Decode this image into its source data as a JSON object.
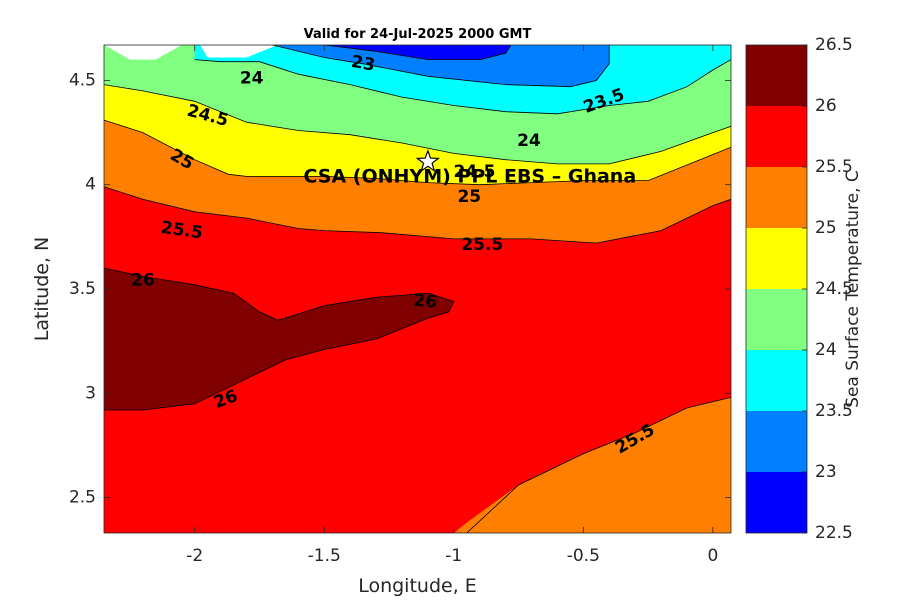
{
  "chart_data": {
    "type": "filled-contour",
    "title": "Valid for 24-Jul-2025 2000 GMT",
    "xlabel": "Longitude, E",
    "ylabel": "Latitude, N",
    "xlim": [
      -2.35,
      0.07
    ],
    "ylim": [
      2.33,
      4.67
    ],
    "xticks": [
      -2,
      -1.5,
      -1,
      -0.5,
      0
    ],
    "xtick_labels": [
      "-2",
      "-1.5",
      "-1",
      "-0.5",
      "0"
    ],
    "yticks": [
      2.5,
      3,
      3.5,
      4,
      4.5
    ],
    "ytick_labels": [
      "2.5",
      "3",
      "3.5",
      "4",
      "4.5"
    ],
    "colorbar": {
      "label": "Sea Surface Temperature, C",
      "levels": [
        22.5,
        23,
        23.5,
        24,
        24.5,
        25,
        25.5,
        26,
        26.5
      ],
      "tick_labels": [
        "22.5",
        "23",
        "23.5",
        "24",
        "24.5",
        "25",
        "25.5",
        "26",
        "26.5"
      ],
      "colors": [
        "#0000ff",
        "#0080ff",
        "#00ffff",
        "#80ff80",
        "#ffff00",
        "#ff8000",
        "#ff0000",
        "#800000"
      ]
    },
    "regions": [
      {
        "level": 25.5,
        "polygon": [
          [
            -2.35,
            2.33
          ],
          [
            0.07,
            2.33
          ],
          [
            0.07,
            4.67
          ],
          [
            -2.35,
            4.67
          ]
        ]
      },
      {
        "level": 25,
        "polygon": [
          [
            -1,
            2.33
          ],
          [
            0.07,
            2.33
          ],
          [
            0.07,
            2.98
          ],
          [
            -0.1,
            2.93
          ],
          [
            -0.3,
            2.81
          ],
          [
            -0.5,
            2.71
          ],
          [
            -0.75,
            2.56
          ],
          [
            -0.95,
            2.38
          ]
        ]
      },
      {
        "level": 25,
        "polygon": [
          [
            -2.35,
            3.99
          ],
          [
            -2.2,
            3.93
          ],
          [
            -2,
            3.87
          ],
          [
            -1.8,
            3.84
          ],
          [
            -1.6,
            3.79
          ],
          [
            -1.5,
            3.78
          ],
          [
            -1.28,
            3.77
          ],
          [
            -1,
            3.74
          ],
          [
            -0.7,
            3.74
          ],
          [
            -0.45,
            3.72
          ],
          [
            -0.2,
            3.78
          ],
          [
            0,
            3.9
          ],
          [
            0.07,
            3.93
          ],
          [
            0.07,
            4.67
          ],
          [
            -2.35,
            4.67
          ]
        ]
      },
      {
        "level": 24.5,
        "polygon": [
          [
            -2.35,
            4.31
          ],
          [
            -2.2,
            4.25
          ],
          [
            -2,
            4.12
          ],
          [
            -1.87,
            4.05
          ],
          [
            -1.8,
            4.04
          ],
          [
            -1.5,
            4.04
          ],
          [
            -1.3,
            4.03
          ],
          [
            -1.1,
            4.01
          ],
          [
            -0.9,
            4.0
          ],
          [
            -0.7,
            4.01
          ],
          [
            -0.5,
            4.02
          ],
          [
            -0.25,
            4.02
          ],
          [
            -0.05,
            4.12
          ],
          [
            0.07,
            4.18
          ],
          [
            0.07,
            4.67
          ],
          [
            -2.35,
            4.67
          ]
        ]
      },
      {
        "level": 24,
        "polygon": [
          [
            -2.35,
            4.48
          ],
          [
            -2.2,
            4.45
          ],
          [
            -2,
            4.4
          ],
          [
            -1.8,
            4.3
          ],
          [
            -1.6,
            4.26
          ],
          [
            -1.4,
            4.24
          ],
          [
            -1.2,
            4.2
          ],
          [
            -1,
            4.15
          ],
          [
            -0.8,
            4.12
          ],
          [
            -0.6,
            4.1
          ],
          [
            -0.4,
            4.1
          ],
          [
            -0.2,
            4.16
          ],
          [
            0,
            4.25
          ],
          [
            0.07,
            4.28
          ],
          [
            0.07,
            4.67
          ],
          [
            -2.35,
            4.67
          ]
        ]
      },
      {
        "level": 23.5,
        "polygon": [
          [
            -2,
            4.6
          ],
          [
            -1.9,
            4.59
          ],
          [
            -1.75,
            4.59
          ],
          [
            -1.6,
            4.53
          ],
          [
            -1.4,
            4.48
          ],
          [
            -1.2,
            4.42
          ],
          [
            -1,
            4.38
          ],
          [
            -0.8,
            4.35
          ],
          [
            -0.6,
            4.34
          ],
          [
            -0.4,
            4.38
          ],
          [
            -0.25,
            4.4
          ],
          [
            -0.1,
            4.47
          ],
          [
            0,
            4.55
          ],
          [
            0.07,
            4.6
          ],
          [
            0.07,
            4.67
          ],
          [
            -2,
            4.67
          ]
        ]
      },
      {
        "level": 23,
        "polygon": [
          [
            -1.7,
            4.67
          ],
          [
            -1.5,
            4.61
          ],
          [
            -1.35,
            4.58
          ],
          [
            -1.1,
            4.52
          ],
          [
            -0.8,
            4.48
          ],
          [
            -0.55,
            4.47
          ],
          [
            -0.45,
            4.5
          ],
          [
            -0.4,
            4.58
          ],
          [
            -0.4,
            4.67
          ]
        ]
      },
      {
        "level": 22.5,
        "polygon": [
          [
            -1.5,
            4.67
          ],
          [
            -1.3,
            4.64
          ],
          [
            -1.1,
            4.6
          ],
          [
            -0.9,
            4.6
          ],
          [
            -0.8,
            4.63
          ],
          [
            -0.78,
            4.67
          ]
        ]
      },
      {
        "level": 26,
        "polygon": [
          [
            -2.35,
            3.6
          ],
          [
            -2.2,
            3.56
          ],
          [
            -2,
            3.52
          ],
          [
            -1.85,
            3.48
          ],
          [
            -1.75,
            3.39
          ],
          [
            -1.68,
            3.35
          ],
          [
            -1.6,
            3.38
          ],
          [
            -1.5,
            3.42
          ],
          [
            -1.3,
            3.46
          ],
          [
            -1.1,
            3.48
          ],
          [
            -1,
            3.44
          ],
          [
            -1.02,
            3.39
          ],
          [
            -1.1,
            3.36
          ],
          [
            -1.3,
            3.26
          ],
          [
            -1.5,
            3.21
          ],
          [
            -1.65,
            3.16
          ],
          [
            -1.8,
            3.07
          ],
          [
            -2,
            2.95
          ],
          [
            -2.2,
            2.92
          ],
          [
            -2.35,
            2.92
          ]
        ]
      },
      {
        "level": "blank",
        "polygon": [
          [
            -2.35,
            4.67
          ],
          [
            -2.25,
            4.6
          ],
          [
            -2.15,
            4.6
          ],
          [
            -2.05,
            4.67
          ]
        ]
      },
      {
        "level": "blank",
        "polygon": [
          [
            -1.98,
            4.67
          ],
          [
            -1.95,
            4.61
          ],
          [
            -1.8,
            4.61
          ],
          [
            -1.68,
            4.67
          ]
        ]
      }
    ],
    "contour_lines": [
      {
        "level": 26,
        "points": [
          [
            -2.35,
            3.6
          ],
          [
            -2.2,
            3.56
          ],
          [
            -2,
            3.52
          ],
          [
            -1.85,
            3.48
          ],
          [
            -1.75,
            3.39
          ],
          [
            -1.68,
            3.35
          ],
          [
            -1.6,
            3.38
          ],
          [
            -1.5,
            3.42
          ],
          [
            -1.3,
            3.46
          ],
          [
            -1.1,
            3.48
          ],
          [
            -1,
            3.44
          ],
          [
            -1.02,
            3.39
          ],
          [
            -1.1,
            3.36
          ],
          [
            -1.3,
            3.26
          ],
          [
            -1.5,
            3.21
          ],
          [
            -1.65,
            3.16
          ],
          [
            -1.8,
            3.07
          ],
          [
            -2,
            2.95
          ],
          [
            -2.2,
            2.92
          ],
          [
            -2.35,
            2.92
          ]
        ]
      },
      {
        "level": 25.5,
        "points": [
          [
            -0.95,
            2.33
          ],
          [
            -0.75,
            2.56
          ],
          [
            -0.5,
            2.71
          ],
          [
            -0.3,
            2.81
          ],
          [
            -0.1,
            2.93
          ],
          [
            0.07,
            2.98
          ]
        ]
      },
      {
        "level": 25.5,
        "points": [
          [
            -2.35,
            3.99
          ],
          [
            -2.2,
            3.93
          ],
          [
            -2,
            3.87
          ],
          [
            -1.8,
            3.84
          ],
          [
            -1.6,
            3.79
          ],
          [
            -1.5,
            3.78
          ],
          [
            -1.28,
            3.77
          ],
          [
            -1,
            3.74
          ],
          [
            -0.7,
            3.74
          ],
          [
            -0.45,
            3.72
          ],
          [
            -0.2,
            3.78
          ],
          [
            0,
            3.9
          ],
          [
            0.07,
            3.93
          ]
        ]
      },
      {
        "level": 25,
        "points": [
          [
            -2.35,
            4.31
          ],
          [
            -2.2,
            4.25
          ],
          [
            -2,
            4.12
          ],
          [
            -1.87,
            4.05
          ],
          [
            -1.8,
            4.04
          ],
          [
            -1.5,
            4.04
          ],
          [
            -1.3,
            4.03
          ],
          [
            -1.1,
            4.01
          ],
          [
            -0.9,
            4.0
          ],
          [
            -0.7,
            4.01
          ],
          [
            -0.5,
            4.02
          ],
          [
            -0.25,
            4.02
          ],
          [
            -0.05,
            4.12
          ],
          [
            0.07,
            4.18
          ]
        ]
      },
      {
        "level": 24.5,
        "points": [
          [
            -2.35,
            4.48
          ],
          [
            -2.2,
            4.45
          ],
          [
            -2,
            4.4
          ],
          [
            -1.8,
            4.3
          ],
          [
            -1.6,
            4.26
          ],
          [
            -1.4,
            4.24
          ],
          [
            -1.2,
            4.2
          ],
          [
            -1,
            4.15
          ],
          [
            -0.8,
            4.12
          ],
          [
            -0.6,
            4.1
          ],
          [
            -0.4,
            4.1
          ],
          [
            -0.2,
            4.16
          ],
          [
            0,
            4.25
          ],
          [
            0.07,
            4.28
          ]
        ]
      },
      {
        "level": 24,
        "points": [
          [
            -2,
            4.6
          ],
          [
            -1.9,
            4.59
          ],
          [
            -1.75,
            4.59
          ],
          [
            -1.6,
            4.53
          ],
          [
            -1.4,
            4.48
          ],
          [
            -1.2,
            4.42
          ],
          [
            -1,
            4.38
          ],
          [
            -0.8,
            4.35
          ],
          [
            -0.6,
            4.34
          ],
          [
            -0.4,
            4.38
          ],
          [
            -0.25,
            4.4
          ],
          [
            -0.1,
            4.47
          ],
          [
            0,
            4.55
          ],
          [
            0.07,
            4.6
          ]
        ]
      },
      {
        "level": 23.5,
        "points": [
          [
            -1.7,
            4.67
          ],
          [
            -1.5,
            4.61
          ],
          [
            -1.35,
            4.58
          ],
          [
            -1.1,
            4.52
          ],
          [
            -0.8,
            4.48
          ],
          [
            -0.55,
            4.47
          ],
          [
            -0.45,
            4.5
          ],
          [
            -0.4,
            4.58
          ],
          [
            -0.4,
            4.67
          ]
        ]
      },
      {
        "level": 23,
        "points": [
          [
            -1.5,
            4.67
          ],
          [
            -1.3,
            4.64
          ],
          [
            -1.1,
            4.6
          ],
          [
            -0.9,
            4.6
          ],
          [
            -0.8,
            4.63
          ],
          [
            -0.78,
            4.67
          ]
        ]
      }
    ],
    "contour_labels": [
      {
        "text": "23",
        "x": -1.35,
        "y": 4.58,
        "rotation": 10
      },
      {
        "text": "24",
        "x": -1.78,
        "y": 4.51,
        "rotation": 0
      },
      {
        "text": "23.5",
        "x": -0.42,
        "y": 4.4,
        "rotation": -20
      },
      {
        "text": "24.5",
        "x": -1.95,
        "y": 4.33,
        "rotation": 15
      },
      {
        "text": "24",
        "x": -0.71,
        "y": 4.21,
        "rotation": 0
      },
      {
        "text": "25",
        "x": -2.05,
        "y": 4.12,
        "rotation": 30
      },
      {
        "text": "24.5",
        "x": -0.92,
        "y": 4.06,
        "rotation": 0
      },
      {
        "text": "25",
        "x": -0.94,
        "y": 3.94,
        "rotation": 0
      },
      {
        "text": "25.5",
        "x": -2.05,
        "y": 3.78,
        "rotation": 8
      },
      {
        "text": "25.5",
        "x": -0.89,
        "y": 3.71,
        "rotation": 0
      },
      {
        "text": "26",
        "x": -2.2,
        "y": 3.54,
        "rotation": 0
      },
      {
        "text": "26",
        "x": -1.11,
        "y": 3.44,
        "rotation": 5
      },
      {
        "text": "26",
        "x": -1.88,
        "y": 2.97,
        "rotation": -20
      },
      {
        "text": "25.5",
        "x": -0.3,
        "y": 2.78,
        "rotation": -30
      }
    ],
    "site": {
      "name": "CSA (ONHYM) PPL EBS  – Ghana",
      "x": -1.1,
      "y": 4.11,
      "label_x": -1.58,
      "label_y": 4.04
    }
  }
}
